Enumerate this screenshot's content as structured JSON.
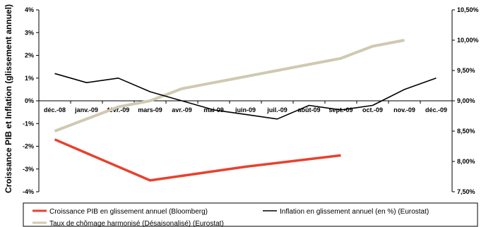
{
  "chart_data": {
    "type": "line",
    "categories": [
      "déc.-08",
      "janv.-09",
      "févr.-09",
      "mars-09",
      "avr.-09",
      "mai-09",
      "juin-09",
      "juil.-09",
      "août-09",
      "sept.-09",
      "oct.-09",
      "nov.-09",
      "déc.-09"
    ],
    "ylabel": "Croissance PIB et Inflation (glissement annuel)",
    "y2label": "",
    "ylim": [
      -4,
      4
    ],
    "y2lim": [
      7.5,
      10.5
    ],
    "yticks": [
      "4%",
      "3%",
      "2%",
      "1%",
      "0%",
      "-1%",
      "-2%",
      "-3%",
      "-4%"
    ],
    "y2ticks": [
      "10,50%",
      "10,00%",
      "9,50%",
      "9,00%",
      "8,50%",
      "8,00%",
      "7,50%"
    ],
    "grid": false,
    "legend_position": "bottom",
    "series": [
      {
        "name": "Croissance PIB en glissement annuel (Bloomberg)",
        "axis": "left",
        "color": "#e8412e",
        "x": [
          "déc.-08",
          "mars-09",
          "juin-09",
          "sept.-09"
        ],
        "values": [
          -1.7,
          -3.5,
          -2.9,
          -2.4
        ]
      },
      {
        "name": "Inflation en glissement annuel (en %) (Eurostat)",
        "axis": "left",
        "color": "#000000",
        "x": [
          "déc.-08",
          "janv.-09",
          "févr.-09",
          "mars-09",
          "avr.-09",
          "mai-09",
          "juin-09",
          "juil.-09",
          "août-09",
          "sept.-09",
          "oct.-09",
          "nov.-09",
          "déc.-09"
        ],
        "values": [
          1.2,
          0.8,
          1.0,
          0.4,
          0.0,
          -0.4,
          -0.6,
          -0.8,
          -0.2,
          -0.4,
          -0.2,
          0.5,
          1.0
        ]
      },
      {
        "name": "Taux de chômage harmonisé (Désaisonalisé) (Eurostat)",
        "axis": "right",
        "color": "#d0c9b0",
        "x": [
          "déc.-08",
          "janv.-09",
          "févr.-09",
          "mars-09",
          "avr.-09",
          "mai-09",
          "juin-09",
          "juil.-09",
          "août-09",
          "sept.-09",
          "oct.-09",
          "nov.-09"
        ],
        "values": [
          8.5,
          8.7,
          8.9,
          9.0,
          9.2,
          9.3,
          9.4,
          9.5,
          9.6,
          9.7,
          9.9,
          10.0
        ]
      }
    ]
  }
}
